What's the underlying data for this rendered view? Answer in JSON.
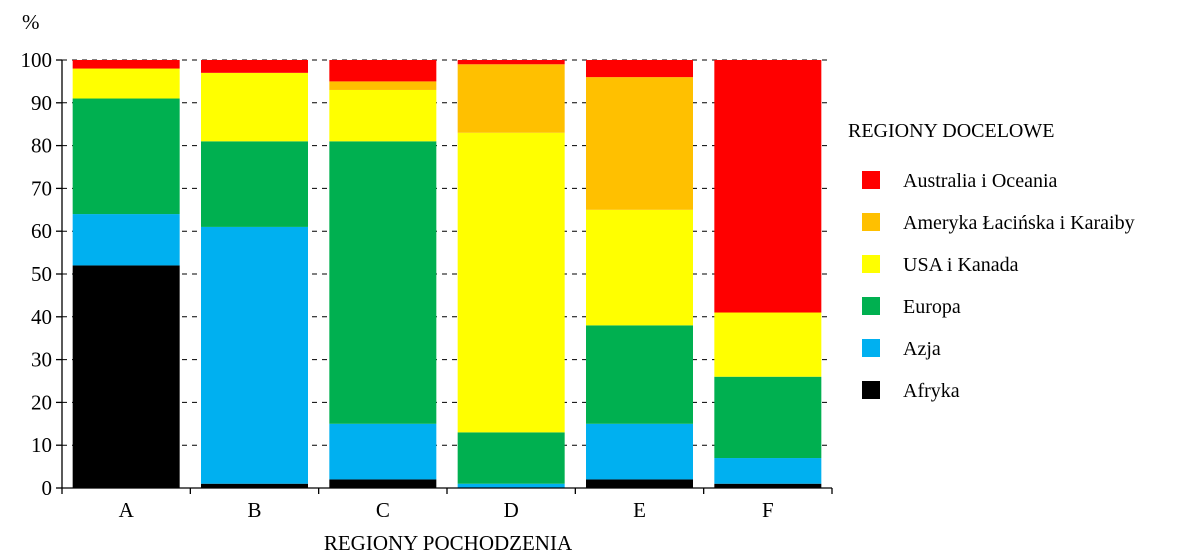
{
  "chart_data": {
    "type": "bar",
    "stacked": true,
    "ylabel": "%",
    "xlabel": "REGIONY POCHODZENIA",
    "ylim": [
      0,
      100
    ],
    "yticks": [
      0,
      10,
      20,
      30,
      40,
      50,
      60,
      70,
      80,
      90,
      100
    ],
    "grid": "dashed horizontal",
    "categories": [
      "A",
      "B",
      "C",
      "D",
      "E",
      "F"
    ],
    "legend": {
      "title": "REGIONY DOCELOWE",
      "placement": "right"
    },
    "series": [
      {
        "name": "Afryka",
        "color": "#000000",
        "values": [
          52,
          1,
          2,
          0,
          2,
          1
        ]
      },
      {
        "name": "Azja",
        "color": "#00b0f0",
        "values": [
          12,
          60,
          13,
          1,
          13,
          6
        ]
      },
      {
        "name": "Europa",
        "color": "#00b050",
        "values": [
          27,
          20,
          66,
          12,
          23,
          19
        ]
      },
      {
        "name": "USA i Kanada",
        "color": "#ffff00",
        "values": [
          7,
          16,
          12,
          70,
          27,
          15
        ]
      },
      {
        "name": "Ameryka Łacińska i Karaiby",
        "color": "#ffc000",
        "values": [
          0,
          0,
          2,
          16,
          31,
          0
        ]
      },
      {
        "name": "Australia i Oceania",
        "color": "#ff0000",
        "values": [
          2,
          3,
          5,
          1,
          4,
          59
        ]
      }
    ]
  }
}
